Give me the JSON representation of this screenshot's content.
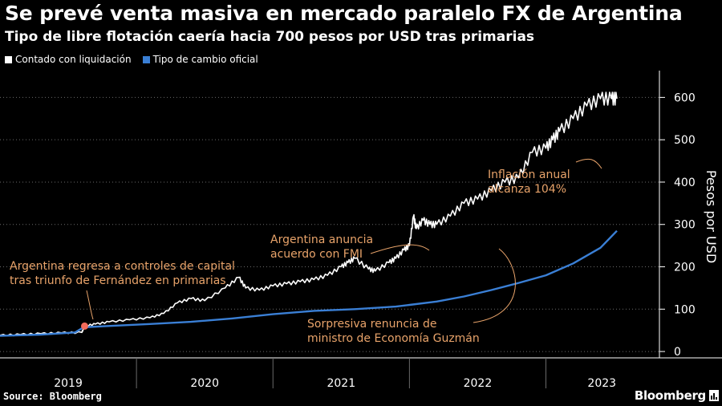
{
  "title": "Se prevé venta masiva en mercado paralelo FX de Argentina",
  "subtitle": "Tipo de libre flotación caería hacia 700 pesos por USD tras primarias",
  "source": "Source: Bloomberg",
  "brand": "Bloomberg",
  "colors": {
    "background": "#000000",
    "ccl": "#ffffff",
    "oficial": "#3a7fd5",
    "annotation": "#e8a36a",
    "marker": "#f26b5b",
    "grid": "#6a6a6a"
  },
  "chart_data": {
    "type": "line",
    "ylabel": "Pesos por USD",
    "ylim": [
      -15,
      650
    ],
    "yticks": [
      0,
      100,
      200,
      300,
      400,
      500,
      600
    ],
    "xlim": [
      2019.0,
      2023.82
    ],
    "xticks": [
      "2019",
      "2020",
      "2021",
      "2022",
      "2023"
    ],
    "grid": true,
    "legend_position": "top-left",
    "series": [
      {
        "name": "Contado con liquidación",
        "color": "#ffffff",
        "x": [
          2019.0,
          2019.15,
          2019.3,
          2019.45,
          2019.6,
          2019.62,
          2019.7,
          2019.8,
          2019.95,
          2020.1,
          2020.2,
          2020.3,
          2020.4,
          2020.5,
          2020.65,
          2020.75,
          2020.8,
          2020.9,
          2021.0,
          2021.1,
          2021.2,
          2021.3,
          2021.4,
          2021.5,
          2021.55,
          2021.6,
          2021.7,
          2021.75,
          2021.85,
          2021.9,
          2021.96,
          2022.0,
          2022.03,
          2022.05,
          2022.1,
          2022.15,
          2022.2,
          2022.3,
          2022.4,
          2022.5,
          2022.6,
          2022.7,
          2022.8,
          2022.9,
          2023.0,
          2023.05,
          2023.1,
          2023.2,
          2023.3,
          2023.4,
          2023.48,
          2023.52
        ],
        "values": [
          38,
          40,
          42,
          44,
          45,
          60,
          65,
          70,
          75,
          80,
          90,
          115,
          125,
          120,
          150,
          175,
          150,
          145,
          155,
          160,
          165,
          170,
          180,
          200,
          210,
          220,
          195,
          190,
          210,
          220,
          240,
          250,
          320,
          290,
          310,
          300,
          300,
          320,
          350,
          360,
          380,
          400,
          410,
          470,
          480,
          500,
          520,
          550,
          580,
          597,
          597,
          597
        ]
      },
      {
        "name": "Tipo de cambio oficial",
        "color": "#3a7fd5",
        "x": [
          2019.0,
          2019.3,
          2019.55,
          2019.6,
          2019.65,
          2019.9,
          2020.1,
          2020.4,
          2020.7,
          2021.0,
          2021.3,
          2021.6,
          2021.9,
          2022.0,
          2022.2,
          2022.4,
          2022.6,
          2022.8,
          2023.0,
          2023.2,
          2023.4,
          2023.52
        ],
        "values": [
          37,
          40,
          45,
          55,
          58,
          62,
          65,
          70,
          78,
          88,
          96,
          100,
          106,
          110,
          118,
          130,
          145,
          162,
          180,
          208,
          245,
          285
        ]
      }
    ],
    "annotations": [
      {
        "lines": [
          "Argentina regresa a controles de capital",
          "tras triunfo de Fernández en primarias"
        ],
        "x": 2019.62,
        "y": 60
      },
      {
        "lines": [
          "Argentina anuncia",
          "acuerdo con FMI"
        ],
        "x": 2022.05,
        "y": 230
      },
      {
        "lines": [
          "Sorpresiva renuncia de",
          "ministro de Economía Guzmán"
        ],
        "x": 2022.5,
        "y": 240
      },
      {
        "lines": [
          "Inflación anual",
          "alcanza 104%"
        ],
        "x": 2023.28,
        "y": 405
      }
    ]
  }
}
